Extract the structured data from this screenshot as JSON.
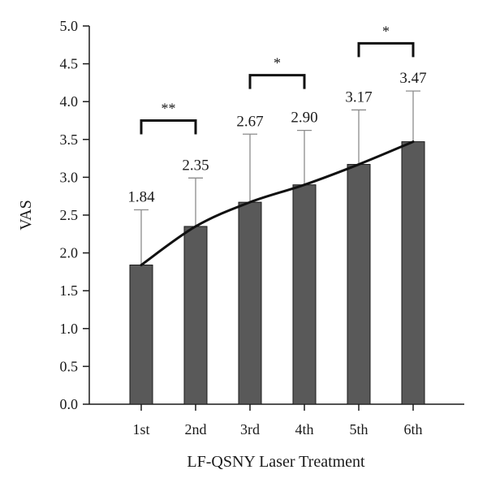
{
  "chart_data": {
    "type": "bar",
    "title": "",
    "xlabel": "LF-QSNY Laser Treatment",
    "ylabel": "VAS",
    "categories": [
      "1st",
      "2nd",
      "3rd",
      "4th",
      "5th",
      "6th"
    ],
    "values": [
      1.84,
      2.35,
      2.67,
      2.9,
      3.17,
      3.47
    ],
    "value_labels": [
      "1.84",
      "2.35",
      "2.67",
      "2.90",
      "3.17",
      "3.47"
    ],
    "error_upper": [
      2.57,
      2.99,
      3.57,
      3.62,
      3.89,
      4.14
    ],
    "ylim": [
      0,
      5
    ],
    "yticks": [
      "0.0",
      "0.5",
      "1.0",
      "1.5",
      "2.0",
      "2.5",
      "3.0",
      "3.5",
      "4.0",
      "4.5",
      "5.0"
    ],
    "trend_line": true,
    "grid": false,
    "significance": [
      {
        "from": 0,
        "to": 1,
        "label": "**",
        "y": 3.75
      },
      {
        "from": 2,
        "to": 3,
        "label": "*",
        "y": 4.35
      },
      {
        "from": 4,
        "to": 5,
        "label": "*",
        "y": 4.77
      }
    ],
    "colors": {
      "bar": "#595959",
      "bar_edge": "#1a1a1a",
      "line": "#111111",
      "error": "#8c8c8c",
      "axis": "#1a1a1a"
    }
  }
}
